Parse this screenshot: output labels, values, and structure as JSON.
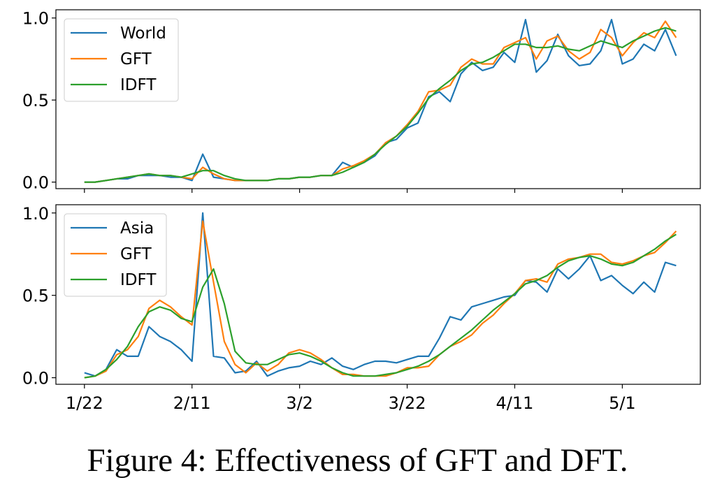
{
  "caption": "Figure 4: Effectiveness of GFT and DFT.",
  "colors": {
    "raw": "#1f77b4",
    "gft": "#ff7f0e",
    "idft": "#2ca02c"
  },
  "chart_data": [
    {
      "type": "line",
      "title": "",
      "x_unit": "days since 1/22",
      "x_step_days": 2,
      "xticks": [
        {
          "day": 0,
          "label": "1/22"
        },
        {
          "day": 20,
          "label": "2/11"
        },
        {
          "day": 40,
          "label": "3/2"
        },
        {
          "day": 60,
          "label": "3/22"
        },
        {
          "day": 80,
          "label": "4/11"
        },
        {
          "day": 100,
          "label": "5/1"
        }
      ],
      "xtick_labels_shown": false,
      "xlim": [
        -5.3,
        114.5
      ],
      "ylim": [
        -0.04,
        1.05
      ],
      "yticks": [
        {
          "v": 0.0,
          "label": "0.0"
        },
        {
          "v": 0.5,
          "label": "0.5"
        },
        {
          "v": 1.0,
          "label": "1.0"
        }
      ],
      "legend": "top-left",
      "series": [
        {
          "name": "World",
          "key": "raw",
          "values": [
            0,
            0,
            0.01,
            0.02,
            0.02,
            0.04,
            0.04,
            0.04,
            0.03,
            0.03,
            0.01,
            0.17,
            0.03,
            0.02,
            0.01,
            0.01,
            0.01,
            0.01,
            0.02,
            0.02,
            0.03,
            0.03,
            0.04,
            0.04,
            0.12,
            0.09,
            0.12,
            0.16,
            0.24,
            0.26,
            0.33,
            0.36,
            0.52,
            0.55,
            0.49,
            0.66,
            0.73,
            0.68,
            0.7,
            0.79,
            0.73,
            0.99,
            0.67,
            0.74,
            0.9,
            0.77,
            0.71,
            0.72,
            0.8,
            0.99,
            0.72,
            0.75,
            0.84,
            0.8,
            0.93,
            0.77
          ]
        },
        {
          "name": "GFT",
          "key": "gft",
          "values": [
            0,
            0,
            0.01,
            0.02,
            0.03,
            0.04,
            0.05,
            0.04,
            0.04,
            0.03,
            0.02,
            0.09,
            0.05,
            0.02,
            0.01,
            0.01,
            0.01,
            0.01,
            0.02,
            0.02,
            0.03,
            0.03,
            0.04,
            0.04,
            0.08,
            0.1,
            0.13,
            0.17,
            0.24,
            0.28,
            0.35,
            0.43,
            0.55,
            0.56,
            0.59,
            0.7,
            0.75,
            0.72,
            0.72,
            0.82,
            0.85,
            0.88,
            0.75,
            0.86,
            0.89,
            0.8,
            0.75,
            0.79,
            0.93,
            0.88,
            0.77,
            0.85,
            0.91,
            0.88,
            0.98,
            0.88
          ]
        },
        {
          "name": "IDFT",
          "key": "idft",
          "values": [
            0,
            0,
            0.01,
            0.02,
            0.03,
            0.04,
            0.05,
            0.04,
            0.04,
            0.03,
            0.05,
            0.07,
            0.07,
            0.04,
            0.02,
            0.01,
            0.01,
            0.01,
            0.02,
            0.02,
            0.03,
            0.03,
            0.04,
            0.04,
            0.06,
            0.09,
            0.12,
            0.17,
            0.23,
            0.28,
            0.34,
            0.42,
            0.51,
            0.57,
            0.62,
            0.68,
            0.72,
            0.73,
            0.76,
            0.8,
            0.84,
            0.84,
            0.82,
            0.82,
            0.83,
            0.81,
            0.8,
            0.83,
            0.86,
            0.84,
            0.82,
            0.86,
            0.89,
            0.92,
            0.94,
            0.92
          ]
        }
      ]
    },
    {
      "type": "line",
      "title": "",
      "x_unit": "days since 1/22",
      "x_step_days": 2,
      "xticks": [
        {
          "day": 0,
          "label": "1/22"
        },
        {
          "day": 20,
          "label": "2/11"
        },
        {
          "day": 40,
          "label": "3/2"
        },
        {
          "day": 60,
          "label": "3/22"
        },
        {
          "day": 80,
          "label": "4/11"
        },
        {
          "day": 100,
          "label": "5/1"
        }
      ],
      "xtick_labels_shown": true,
      "xlim": [
        -5.3,
        114.5
      ],
      "ylim": [
        -0.04,
        1.05
      ],
      "yticks": [
        {
          "v": 0.0,
          "label": "0.0"
        },
        {
          "v": 0.5,
          "label": "0.5"
        },
        {
          "v": 1.0,
          "label": "1.0"
        }
      ],
      "legend": "top-left",
      "series": [
        {
          "name": "Asia",
          "key": "raw",
          "values": [
            0.03,
            0.01,
            0.05,
            0.17,
            0.13,
            0.13,
            0.31,
            0.25,
            0.22,
            0.17,
            0.1,
            1.0,
            0.13,
            0.12,
            0.03,
            0.04,
            0.1,
            0.01,
            0.04,
            0.06,
            0.07,
            0.1,
            0.08,
            0.12,
            0.07,
            0.05,
            0.08,
            0.1,
            0.1,
            0.09,
            0.11,
            0.13,
            0.13,
            0.24,
            0.37,
            0.35,
            0.43,
            0.45,
            0.47,
            0.49,
            0.5,
            0.59,
            0.58,
            0.52,
            0.66,
            0.6,
            0.66,
            0.74,
            0.59,
            0.62,
            0.56,
            0.51,
            0.58,
            0.52,
            0.7,
            0.68
          ]
        },
        {
          "name": "GFT",
          "key": "gft",
          "values": [
            0,
            0.01,
            0.04,
            0.14,
            0.17,
            0.25,
            0.42,
            0.47,
            0.43,
            0.37,
            0.32,
            0.95,
            0.58,
            0.22,
            0.08,
            0.03,
            0.09,
            0.04,
            0.08,
            0.15,
            0.17,
            0.15,
            0.11,
            0.06,
            0.02,
            0.02,
            0.01,
            0.01,
            0.01,
            0.03,
            0.06,
            0.06,
            0.07,
            0.14,
            0.19,
            0.22,
            0.26,
            0.33,
            0.38,
            0.45,
            0.51,
            0.59,
            0.6,
            0.58,
            0.69,
            0.72,
            0.73,
            0.75,
            0.75,
            0.7,
            0.69,
            0.71,
            0.74,
            0.76,
            0.82,
            0.89
          ]
        },
        {
          "name": "IDFT",
          "key": "idft",
          "values": [
            0,
            0.01,
            0.05,
            0.11,
            0.19,
            0.31,
            0.4,
            0.43,
            0.41,
            0.36,
            0.34,
            0.55,
            0.66,
            0.45,
            0.16,
            0.09,
            0.08,
            0.08,
            0.11,
            0.14,
            0.15,
            0.13,
            0.1,
            0.06,
            0.03,
            0.01,
            0.01,
            0.01,
            0.02,
            0.03,
            0.05,
            0.07,
            0.1,
            0.14,
            0.19,
            0.24,
            0.29,
            0.35,
            0.41,
            0.46,
            0.51,
            0.57,
            0.59,
            0.62,
            0.67,
            0.71,
            0.73,
            0.74,
            0.72,
            0.69,
            0.68,
            0.7,
            0.74,
            0.78,
            0.83,
            0.87
          ]
        }
      ]
    }
  ]
}
